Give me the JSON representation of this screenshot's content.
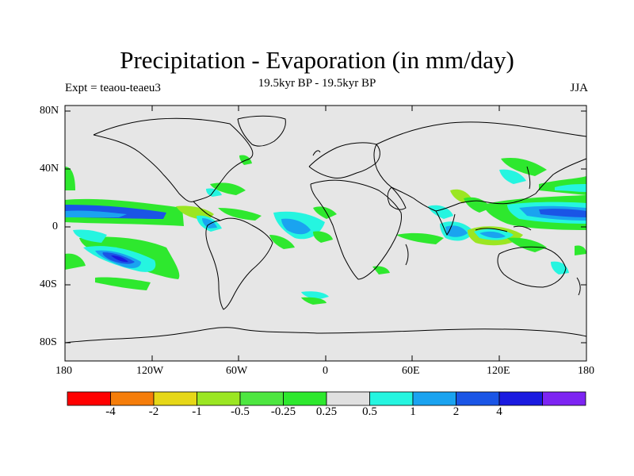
{
  "header": {
    "title": "Precipitation - Evaporation (in mm/day)",
    "subtitle": "19.5kyr BP - 19.5kyr BP",
    "left_label": "Expt = teaou-teaeu3",
    "right_label": "JJA"
  },
  "axes": {
    "lat_ticks": [
      "80N",
      "40N",
      "0",
      "40S",
      "80S"
    ],
    "lon_ticks": [
      "180",
      "120W",
      "60W",
      "0",
      "60E",
      "120E",
      "180"
    ]
  },
  "colorbar": {
    "colors": [
      "#ff0000",
      "#f57d0a",
      "#e6d717",
      "#9be622",
      "#4de640",
      "#2ee82e",
      "#e0e0e0",
      "#25f5e0",
      "#1aa3f0",
      "#1a55e6",
      "#1a1ae0",
      "#7d24f2"
    ],
    "labels": [
      "-4",
      "-2",
      "-1",
      "-0.5",
      "-0.25",
      "0.25",
      "0.5",
      "1",
      "2",
      "4"
    ]
  },
  "colors": {
    "background": "#e6e6e6",
    "green": "#2ee82e",
    "light_green": "#9be622",
    "cyan": "#25f5e0",
    "light_blue": "#1aa3f0",
    "blue": "#1a55e6",
    "dark_blue": "#1a1ae0"
  }
}
